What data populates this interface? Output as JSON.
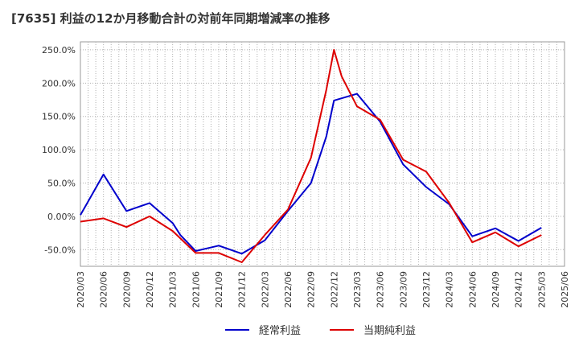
{
  "chart_data": {
    "type": "line",
    "title": "[7635]  利益の12か月移動合計の対前年同期増減率の推移",
    "xlabel": "",
    "ylabel": "",
    "ylim": [
      -75,
      262
    ],
    "grid": true,
    "legend_placement": "bottom-center",
    "y_ticks": [
      "250.0%",
      "200.0%",
      "150.0%",
      "100.0%",
      "50.0%",
      "0.00%",
      "-50.0%"
    ],
    "y_tick_values": [
      250,
      200,
      150,
      100,
      50,
      0,
      -50
    ],
    "x_labels": [
      "2020/03",
      "2020/06",
      "2020/09",
      "2020/12",
      "2021/03",
      "2021/06",
      "2021/09",
      "2021/12",
      "2022/03",
      "2022/06",
      "2022/09",
      "2022/12",
      "2023/03",
      "2023/06",
      "2023/09",
      "2023/12",
      "2024/03",
      "2024/06",
      "2024/09",
      "2024/12",
      "2025/03",
      "2025/06"
    ],
    "series": [
      {
        "name": "経常利益",
        "color": "#0000cc",
        "points": [
          [
            "2020/03",
            2
          ],
          [
            "2020/06",
            63
          ],
          [
            "2020/09",
            8
          ],
          [
            "2020/12",
            20
          ],
          [
            "2021/03",
            -10
          ],
          [
            "2021/04",
            -28
          ],
          [
            "2021/06",
            -52
          ],
          [
            "2021/09",
            -44
          ],
          [
            "2021/12",
            -56
          ],
          [
            "2022/03",
            -36
          ],
          [
            "2022/06",
            8
          ],
          [
            "2022/09",
            50
          ],
          [
            "2022/11",
            120
          ],
          [
            "2022/12",
            174
          ],
          [
            "2023/03",
            184
          ],
          [
            "2023/06",
            142
          ],
          [
            "2023/09",
            78
          ],
          [
            "2023/12",
            44
          ],
          [
            "2024/03",
            18
          ],
          [
            "2024/06",
            -30
          ],
          [
            "2024/09",
            -18
          ],
          [
            "2024/12",
            -37
          ],
          [
            "2025/03",
            -17
          ]
        ]
      },
      {
        "name": "当期純利益",
        "color": "#dd0000",
        "points": [
          [
            "2020/03",
            -8
          ],
          [
            "2020/06",
            -3
          ],
          [
            "2020/09",
            -16
          ],
          [
            "2020/12",
            0
          ],
          [
            "2021/03",
            -22
          ],
          [
            "2021/06",
            -55
          ],
          [
            "2021/09",
            -55
          ],
          [
            "2021/12",
            -69
          ],
          [
            "2022/03",
            -28
          ],
          [
            "2022/06",
            10
          ],
          [
            "2022/09",
            88
          ],
          [
            "2022/11",
            190
          ],
          [
            "2022/12",
            250
          ],
          [
            "2023/01",
            210
          ],
          [
            "2023/03",
            165
          ],
          [
            "2023/06",
            145
          ],
          [
            "2023/09",
            85
          ],
          [
            "2023/12",
            67
          ],
          [
            "2024/03",
            20
          ],
          [
            "2024/06",
            -39
          ],
          [
            "2024/09",
            -24
          ],
          [
            "2024/12",
            -45
          ],
          [
            "2025/03",
            -28
          ]
        ]
      }
    ]
  }
}
